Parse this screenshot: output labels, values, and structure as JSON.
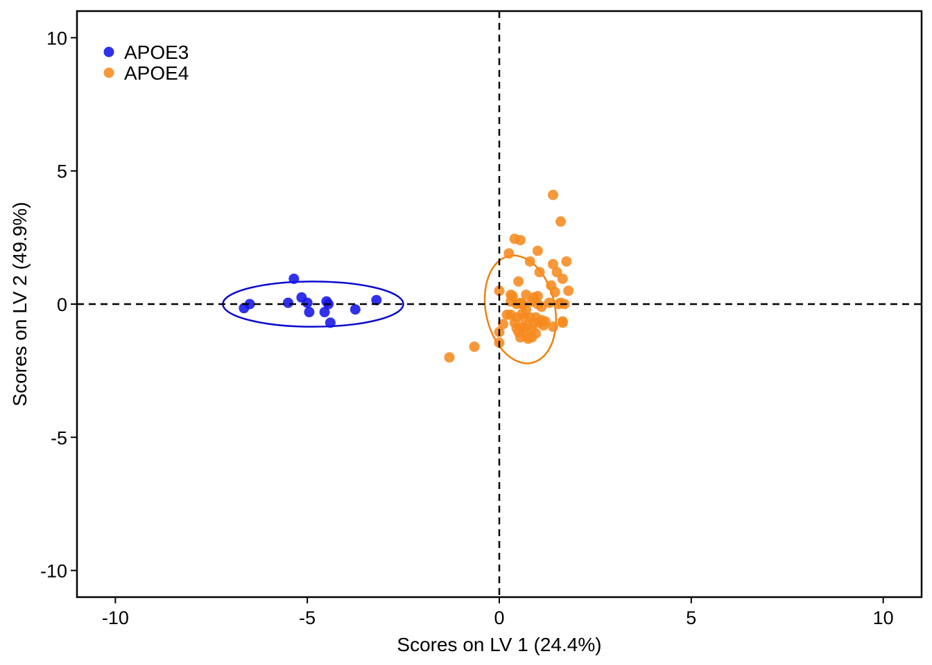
{
  "chart_data": {
    "type": "scatter",
    "title": "",
    "xlabel": "Scores on LV 1 (24.4%)",
    "ylabel": "Scores on LV 2 (49.9%)",
    "xlim": [
      -11,
      11
    ],
    "ylim": [
      -11,
      11
    ],
    "xticks": [
      -10,
      -5,
      0,
      5,
      10
    ],
    "yticks": [
      -10,
      -5,
      0,
      5,
      10
    ],
    "xtick_labels": [
      "-10",
      "-5",
      "0",
      "5",
      "10"
    ],
    "ytick_labels": [
      "-10",
      "-5",
      "0",
      "5",
      "10"
    ],
    "grid": false,
    "reference_lines": {
      "x": 0,
      "y": 0,
      "style": "dashed"
    },
    "legend_position": "top-left",
    "series": [
      {
        "name": "APOE3",
        "color": "#1515e8",
        "ellipse_color": "#0a0ad0",
        "x": [
          -6.65,
          -6.5,
          -5.5,
          -5.35,
          -5.15,
          -5.0,
          -4.95,
          -4.55,
          -4.5,
          -4.45,
          -4.4,
          -3.75,
          -3.2
        ],
        "y": [
          -0.15,
          0.0,
          0.05,
          0.95,
          0.25,
          0.05,
          -0.3,
          -0.3,
          0.1,
          0.0,
          -0.7,
          -0.2,
          0.15
        ],
        "ellipse": {
          "cx": -4.85,
          "cy": 0.0,
          "rx": 2.35,
          "ry": 0.85,
          "angle": 0
        }
      },
      {
        "name": "APOE4",
        "color": "#f68a1f",
        "ellipse_color": "#f0800f",
        "x": [
          -1.3,
          -0.65,
          0.0,
          0.0,
          0.0,
          0.1,
          0.2,
          0.25,
          0.3,
          0.3,
          0.35,
          0.4,
          0.45,
          0.45,
          0.5,
          0.5,
          0.55,
          0.55,
          0.6,
          0.6,
          0.65,
          0.65,
          0.7,
          0.7,
          0.75,
          0.75,
          0.8,
          0.8,
          0.85,
          0.85,
          0.9,
          0.9,
          0.95,
          0.95,
          1.0,
          1.0,
          1.05,
          1.05,
          1.1,
          1.1,
          1.15,
          1.2,
          1.3,
          1.35,
          1.4,
          1.4,
          1.45,
          1.5,
          1.55,
          1.6,
          1.6,
          1.65,
          1.65,
          1.7,
          1.75,
          1.8,
          1.4,
          1.65,
          0.3,
          0.45,
          0.55,
          0.7,
          0.85,
          1.0,
          0.4,
          0.6
        ],
        "y": [
          -2.0,
          -1.6,
          -1.05,
          -1.45,
          0.5,
          -0.75,
          -0.4,
          1.9,
          0.35,
          -0.4,
          0.3,
          2.45,
          0.0,
          -0.9,
          0.85,
          -1.05,
          2.4,
          -1.25,
          -0.85,
          0.0,
          -0.5,
          -0.9,
          0.35,
          -1.2,
          -0.8,
          -1.3,
          1.6,
          -0.5,
          0.1,
          -1.25,
          0.25,
          -0.7,
          -1.1,
          -0.5,
          2.0,
          0.0,
          -0.7,
          1.2,
          -0.1,
          -0.6,
          -0.8,
          -0.65,
          0.05,
          0.7,
          1.5,
          -0.85,
          0.45,
          1.2,
          0.0,
          0.05,
          3.1,
          0.95,
          -0.65,
          0.0,
          1.6,
          0.5,
          4.1,
          -0.7,
          0.1,
          -0.5,
          0.05,
          -0.2,
          -0.95,
          0.3,
          -0.7,
          -0.35
        ],
        "ellipse": {
          "cx": 0.55,
          "cy": -0.2,
          "rx": 0.9,
          "ry": 2.05,
          "angle": -12
        }
      }
    ]
  }
}
